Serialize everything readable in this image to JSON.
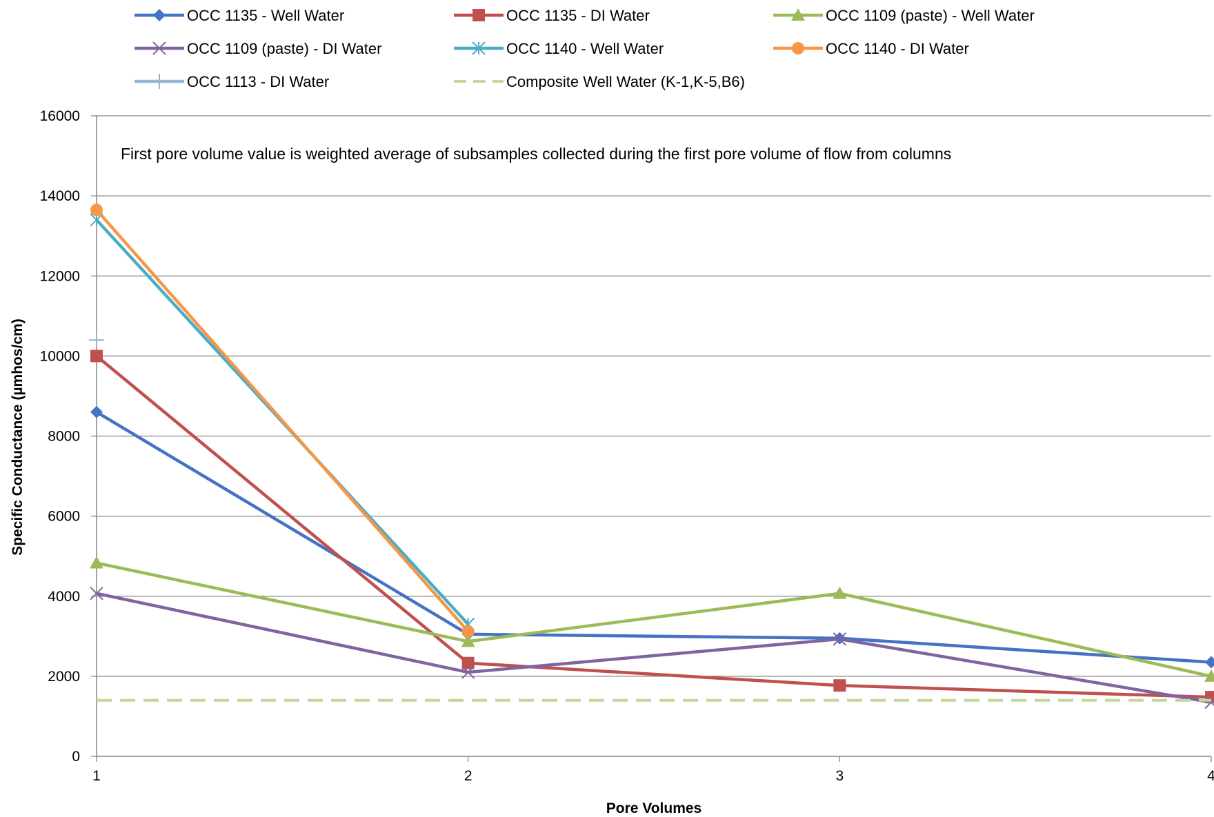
{
  "chart_data": {
    "type": "line",
    "title": "",
    "xlabel": "Pore Volumes",
    "ylabel": "Specific Conductance (µmhos/cm)",
    "x": [
      1,
      2,
      3,
      4
    ],
    "x_tick_labels": [
      "1",
      "2",
      "3",
      "4"
    ],
    "xlim": [
      1,
      4
    ],
    "ylim": [
      0,
      16000
    ],
    "y_ticks": [
      0,
      2000,
      4000,
      6000,
      8000,
      10000,
      12000,
      14000,
      16000
    ],
    "y_tick_labels": [
      "0",
      "2000",
      "4000",
      "6000",
      "8000",
      "10000",
      "12000",
      "14000",
      "16000"
    ],
    "grid": true,
    "legend_position": "top",
    "annotation": "First pore volume value is weighted average of subsamples collected during the first pore volume of flow from columns",
    "series": [
      {
        "name": "OCC 1135 - Well Water",
        "color": "#4472C4",
        "marker": "diamond",
        "values": [
          8600,
          3050,
          2950,
          2350
        ]
      },
      {
        "name": "OCC 1135 - DI Water",
        "color": "#C0504D",
        "marker": "square",
        "values": [
          10000,
          2330,
          1770,
          1480
        ]
      },
      {
        "name": "OCC 1109 (paste) - Well Water",
        "color": "#9BBB59",
        "marker": "triangle",
        "values": [
          4830,
          2870,
          4070,
          2000
        ]
      },
      {
        "name": "OCC 1109 (paste) - DI Water",
        "color": "#8064A2",
        "marker": "x",
        "values": [
          4070,
          2100,
          2930,
          1350
        ]
      },
      {
        "name": "OCC 1140  - Well  Water",
        "color": "#4BACC6",
        "marker": "asterisk",
        "values": [
          13400,
          3300,
          null,
          null
        ]
      },
      {
        "name": "OCC 1140  - DI  Water",
        "color": "#F79646",
        "marker": "circle",
        "values": [
          13650,
          3120,
          null,
          null
        ]
      },
      {
        "name": "OCC 1113  - DI  Water",
        "color": "#95B3D7",
        "marker": "plus",
        "values": [
          10400,
          null,
          null,
          null
        ]
      },
      {
        "name": "Composite Well Water (K-1,K-5,B6)",
        "color": "#C3D69B",
        "marker": "none",
        "dashed": true,
        "values": [
          1400,
          1400,
          1400,
          1400
        ]
      }
    ]
  }
}
